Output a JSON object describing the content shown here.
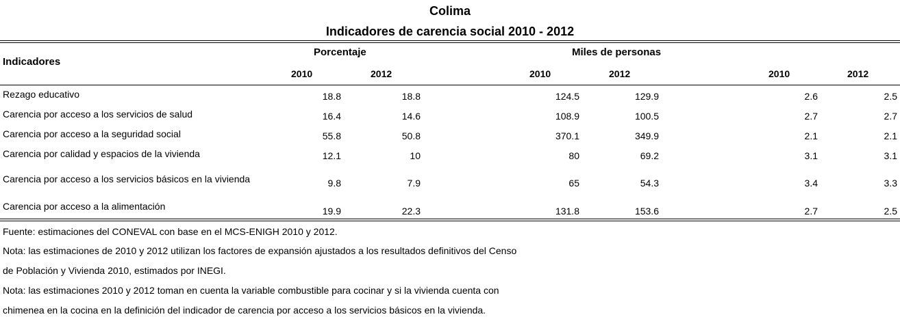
{
  "title": "Colima",
  "subtitle": "Indicadores de carencia social 2010 - 2012",
  "header": {
    "row_label": "Indicadores",
    "group_porcentaje": "Porcentaje",
    "group_miles": "Miles de personas",
    "years": [
      "2010",
      "2012",
      "2010",
      "2012",
      "2010",
      "2012"
    ]
  },
  "rows": [
    {
      "label": "Rezago educativo",
      "values": [
        "18.8",
        "18.8",
        "124.5",
        "129.9",
        "2.6",
        "2.5"
      ]
    },
    {
      "label": "Carencia por acceso a los servicios de salud",
      "values": [
        "16.4",
        "14.6",
        "108.9",
        "100.5",
        "2.7",
        "2.7"
      ]
    },
    {
      "label": "Carencia por acceso a la seguridad social",
      "values": [
        "55.8",
        "50.8",
        "370.1",
        "349.9",
        "2.1",
        "2.1"
      ]
    },
    {
      "label": "Carencia por calidad y espacios de la vivienda",
      "values": [
        "12.1",
        "10",
        "80",
        "69.2",
        "3.1",
        "3.1"
      ]
    },
    {
      "label": "Carencia por acceso a los servicios básicos en la vivienda",
      "values": [
        "9.8",
        "7.9",
        "65",
        "54.3",
        "3.4",
        "3.3"
      ]
    },
    {
      "label": "Carencia por acceso a la alimentación",
      "values": [
        "19.9",
        "22.3",
        "131.8",
        "153.6",
        "2.7",
        "2.5"
      ]
    }
  ],
  "notes": [
    "Fuente: estimaciones del CONEVAL con base en el MCS-ENIGH 2010 y 2012.",
    "Nota: las estimaciones de 2010 y 2012 utilizan los factores de expansión ajustados a los resultados definitivos del Censo",
    "de Población y Vivienda 2010, estimados por INEGI.",
    "Nota: las estimaciones 2010 y 2012 toman en cuenta la variable combustible para cocinar y si la vivienda cuenta con",
    "chimenea en la cocina en la definición del indicador de carencia por acceso a los servicios básicos en la vivienda."
  ]
}
